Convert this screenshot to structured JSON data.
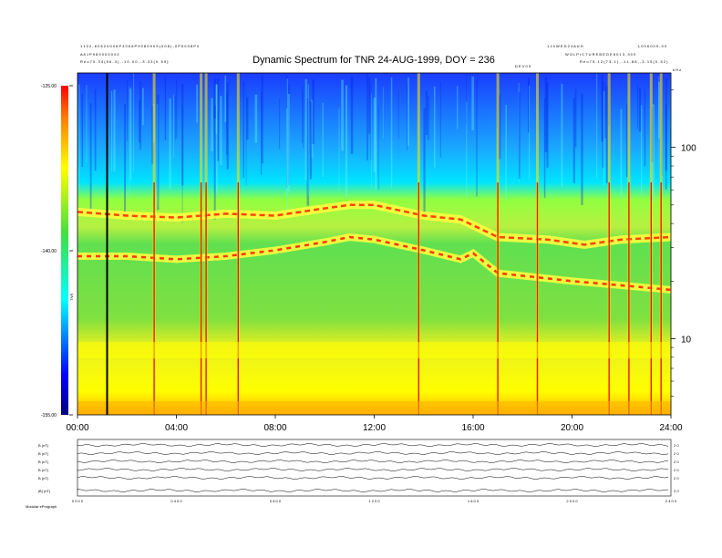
{
  "header": {
    "title": "Dynamic Spectrum for TNR 24-AUG-1999, DOY = 236",
    "left_line1": "1 1 0 2 - 8 0 6 2 0 0 0 8 P 4 0 6 8 P 9 0 8 0 9 0 9 ( 0 0 8 ) - 0 P 6 0 0 8 P 0",
    "left_line2": "A 8 J P 9 8 9 0 0 0 0 0 2",
    "left_line3": "R e o      7 0 . 3 4 ( 5 6 . 3 ) ,  - 1 0 . 0 0 ,  - 3 . 3 3 ( 0 . 5 0 )",
    "right_line1": "1 1 0 W E D 2 4 A U G",
    "right_line2": "W O L P I C T U R E  B E D E 8 0 1 3 . 3 0 0",
    "right_line3": "R e o      7 5 . 1 2 ( 7 3 . 1 ) ,  - 1 1 . 8 8 ,  - 3 . 1 5 ( 0 . 5 2 )",
    "far_right_line1": "L 0 0 6 0 0 9 - 0 0",
    "tiny_mark_center": "D E V 0 0",
    "tiny_mark_right": "k H z"
  },
  "colorbar": {
    "ticks": [
      "-125.00",
      "-140.00",
      "-155.00"
    ],
    "label": "TNR",
    "colors": [
      "#0000ff",
      "#00e0ff",
      "#40e040",
      "#ffff00",
      "#ff0000"
    ]
  },
  "ancillary": {
    "row_labels": [
      "B (nT)",
      "B (nT)",
      "B (nT)",
      "B (nT)",
      "B (nT)",
      "|B| (nT)"
    ],
    "right_ticks": [
      "2 0",
      "2 0",
      "2 0",
      "2 0",
      "2 0",
      "2 0"
    ],
    "x_ticks": [
      "0 0 0 0",
      "0 4 0 0",
      "0 8 0 0",
      "1 2 0 0",
      "1 6 0 0",
      "2 0 0 0",
      "2 4 0 0"
    ],
    "footer": "Modular ePrograph"
  },
  "chart_data": {
    "type": "heatmap",
    "title": "Dynamic Spectrum for TNR 24-AUG-1999, DOY = 236",
    "xlabel": "",
    "ylabel": "",
    "x_tick_labels": [
      "00:00",
      "04:00",
      "08:00",
      "12:00",
      "16:00",
      "20:00",
      "24:00"
    ],
    "x_range_hours": [
      0,
      24
    ],
    "y_scale": "log",
    "y_range_khz": [
      4.0,
      245
    ],
    "y_tick_labels": [
      "100",
      "10"
    ],
    "y_ticks_khz": [
      100,
      10
    ],
    "colorbar_range": [
      -155.0,
      -125.0
    ],
    "colorbar_tick_labels": [
      "-125.00",
      "-140.00",
      "-155.00"
    ],
    "emission_band_upper_khz": [
      [
        0.0,
        46
      ],
      [
        2.0,
        44
      ],
      [
        4.0,
        43
      ],
      [
        6.0,
        45
      ],
      [
        8.0,
        44
      ],
      [
        10.0,
        48
      ],
      [
        11.0,
        50
      ],
      [
        12.0,
        50
      ],
      [
        14.0,
        44
      ],
      [
        15.5,
        42
      ],
      [
        17.0,
        34
      ],
      [
        19.0,
        33
      ],
      [
        20.5,
        31
      ],
      [
        22.0,
        33
      ],
      [
        24.0,
        34
      ]
    ],
    "emission_band_lower_khz": [
      [
        0.0,
        27
      ],
      [
        2.0,
        27
      ],
      [
        4.0,
        26
      ],
      [
        6.0,
        27
      ],
      [
        8.0,
        29
      ],
      [
        10.0,
        32
      ],
      [
        11.0,
        34
      ],
      [
        12.0,
        33
      ],
      [
        14.0,
        29
      ],
      [
        15.5,
        26
      ],
      [
        16.0,
        28
      ],
      [
        17.0,
        22
      ],
      [
        18.5,
        21
      ],
      [
        20.0,
        20
      ],
      [
        22.0,
        19
      ],
      [
        24.0,
        18
      ]
    ],
    "vertical_bursts_hours": [
      3.1,
      5.0,
      5.2,
      6.5,
      13.8,
      17.0,
      18.6,
      21.5,
      22.3,
      23.2,
      23.6
    ],
    "marker_line_hour": 1.2
  }
}
